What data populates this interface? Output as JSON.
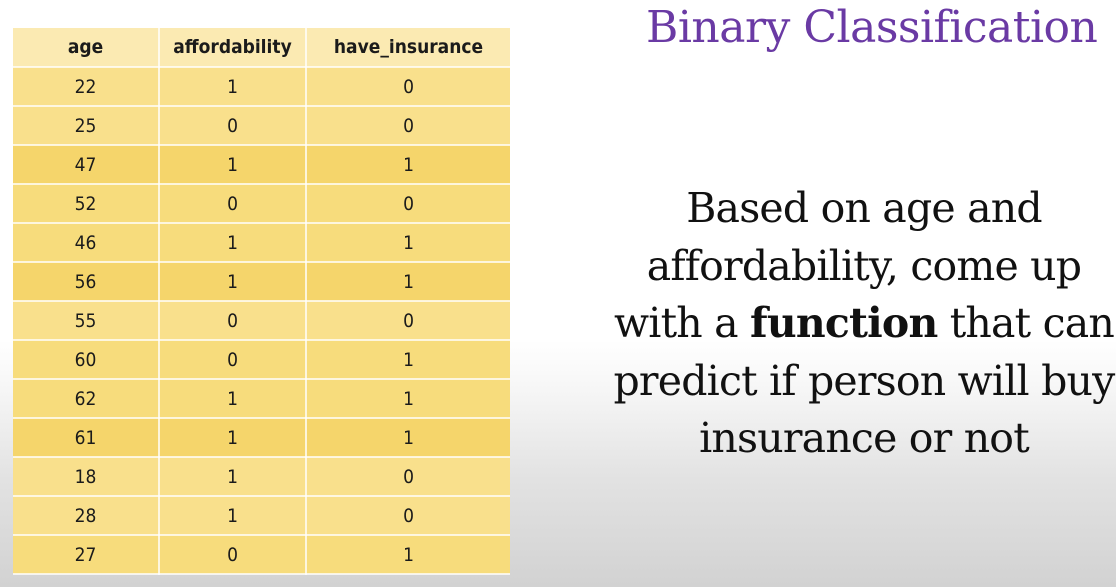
{
  "table": {
    "headers": [
      "age",
      "affordability",
      "have_insurance"
    ],
    "rows": [
      {
        "age": "22",
        "affordability": "1",
        "have_insurance": "0"
      },
      {
        "age": "25",
        "affordability": "0",
        "have_insurance": "0"
      },
      {
        "age": "47",
        "affordability": "1",
        "have_insurance": "1"
      },
      {
        "age": "52",
        "affordability": "0",
        "have_insurance": "0"
      },
      {
        "age": "46",
        "affordability": "1",
        "have_insurance": "1"
      },
      {
        "age": "56",
        "affordability": "1",
        "have_insurance": "1"
      },
      {
        "age": "55",
        "affordability": "0",
        "have_insurance": "0"
      },
      {
        "age": "60",
        "affordability": "0",
        "have_insurance": "1"
      },
      {
        "age": "62",
        "affordability": "1",
        "have_insurance": "1"
      },
      {
        "age": "61",
        "affordability": "1",
        "have_insurance": "1"
      },
      {
        "age": "18",
        "affordability": "1",
        "have_insurance": "0"
      },
      {
        "age": "28",
        "affordability": "1",
        "have_insurance": "0"
      },
      {
        "age": "27",
        "affordability": "0",
        "have_insurance": "1"
      }
    ]
  },
  "title": "Binary Classification",
  "description": {
    "before": "Based on age and affordability, come up with a ",
    "bold": "function",
    "after": " that can predict if person will buy insurance or not"
  },
  "colors": {
    "title": "#6a3aa4",
    "header_bg": "#fbeab2",
    "row_light": "#f9e08c",
    "row_dark": "#f5d56b"
  }
}
